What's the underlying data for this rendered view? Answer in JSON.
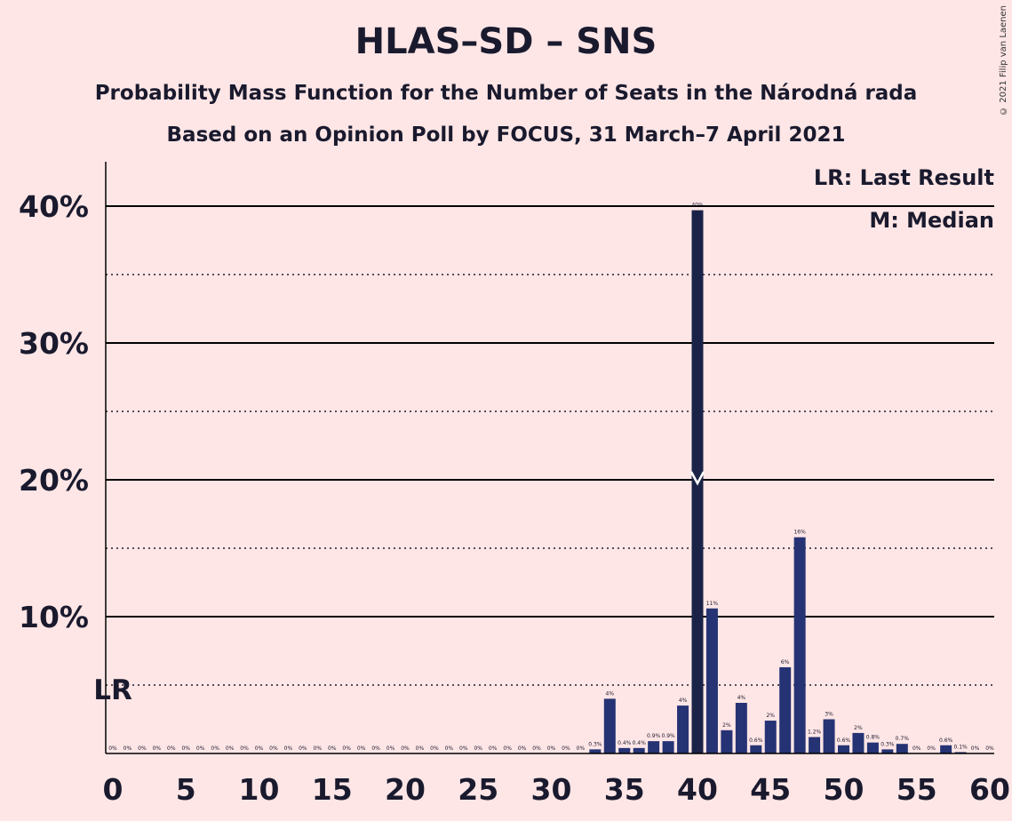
{
  "chart_data": {
    "type": "bar",
    "title": "HLAS–SD – SNS",
    "subtitle": "Probability Mass Function for the Number of Seats in the Národná rada",
    "subtitle2": "Based on an Opinion Poll by FOCUS, 31 March–7 April 2021",
    "copyright": "© 2021 Filip van Laenen",
    "legend": {
      "lr": "LR: Last Result",
      "median": "M: Median",
      "position": "top-right"
    },
    "lr_label": "LR",
    "last_result_seats": 0,
    "median_seats": 40,
    "median_marker_value": 20,
    "xlabel": "",
    "ylabel": "",
    "xlim": [
      0,
      60
    ],
    "ylim": [
      0,
      40
    ],
    "x_ticks": [
      0,
      5,
      10,
      15,
      20,
      25,
      30,
      35,
      40,
      45,
      50,
      55,
      60
    ],
    "y_ticks": [
      {
        "value": 10,
        "label": "10%"
      },
      {
        "value": 20,
        "label": "20%"
      },
      {
        "value": 30,
        "label": "30%"
      },
      {
        "value": 40,
        "label": "40%"
      }
    ],
    "y_dotted": [
      5,
      15,
      25,
      35
    ],
    "bar_colors": {
      "default": "#253374",
      "median": "#1a2347"
    },
    "bars": [
      {
        "seats": 0,
        "value": 0,
        "label": "0%"
      },
      {
        "seats": 1,
        "value": 0,
        "label": "0%"
      },
      {
        "seats": 2,
        "value": 0,
        "label": "0%"
      },
      {
        "seats": 3,
        "value": 0,
        "label": "0%"
      },
      {
        "seats": 4,
        "value": 0,
        "label": "0%"
      },
      {
        "seats": 5,
        "value": 0,
        "label": "0%"
      },
      {
        "seats": 6,
        "value": 0,
        "label": "0%"
      },
      {
        "seats": 7,
        "value": 0,
        "label": "0%"
      },
      {
        "seats": 8,
        "value": 0,
        "label": "0%"
      },
      {
        "seats": 9,
        "value": 0,
        "label": "0%"
      },
      {
        "seats": 10,
        "value": 0,
        "label": "0%"
      },
      {
        "seats": 11,
        "value": 0,
        "label": "0%"
      },
      {
        "seats": 12,
        "value": 0,
        "label": "0%"
      },
      {
        "seats": 13,
        "value": 0,
        "label": "0%"
      },
      {
        "seats": 14,
        "value": 0,
        "label": "0%"
      },
      {
        "seats": 15,
        "value": 0,
        "label": "0%"
      },
      {
        "seats": 16,
        "value": 0,
        "label": "0%"
      },
      {
        "seats": 17,
        "value": 0,
        "label": "0%"
      },
      {
        "seats": 18,
        "value": 0,
        "label": "0%"
      },
      {
        "seats": 19,
        "value": 0,
        "label": "0%"
      },
      {
        "seats": 20,
        "value": 0,
        "label": "0%"
      },
      {
        "seats": 21,
        "value": 0,
        "label": "0%"
      },
      {
        "seats": 22,
        "value": 0,
        "label": "0%"
      },
      {
        "seats": 23,
        "value": 0,
        "label": "0%"
      },
      {
        "seats": 24,
        "value": 0,
        "label": "0%"
      },
      {
        "seats": 25,
        "value": 0,
        "label": "0%"
      },
      {
        "seats": 26,
        "value": 0,
        "label": "0%"
      },
      {
        "seats": 27,
        "value": 0,
        "label": "0%"
      },
      {
        "seats": 28,
        "value": 0,
        "label": "0%"
      },
      {
        "seats": 29,
        "value": 0,
        "label": "0%"
      },
      {
        "seats": 30,
        "value": 0,
        "label": "0%"
      },
      {
        "seats": 31,
        "value": 0,
        "label": "0%"
      },
      {
        "seats": 32,
        "value": 0,
        "label": "0%"
      },
      {
        "seats": 33,
        "value": 0.3,
        "label": "0.3%"
      },
      {
        "seats": 34,
        "value": 4.0,
        "label": "4%"
      },
      {
        "seats": 35,
        "value": 0.4,
        "label": "0.4%"
      },
      {
        "seats": 36,
        "value": 0.4,
        "label": "0.4%"
      },
      {
        "seats": 37,
        "value": 0.9,
        "label": "0.9%"
      },
      {
        "seats": 38,
        "value": 0.9,
        "label": "0.9%"
      },
      {
        "seats": 39,
        "value": 3.5,
        "label": "4%"
      },
      {
        "seats": 40,
        "value": 39.7,
        "label": "40%"
      },
      {
        "seats": 41,
        "value": 10.6,
        "label": "11%"
      },
      {
        "seats": 42,
        "value": 1.7,
        "label": "2%"
      },
      {
        "seats": 43,
        "value": 3.7,
        "label": "4%"
      },
      {
        "seats": 44,
        "value": 0.6,
        "label": "0.6%"
      },
      {
        "seats": 45,
        "value": 2.4,
        "label": "2%"
      },
      {
        "seats": 46,
        "value": 6.3,
        "label": "6%"
      },
      {
        "seats": 47,
        "value": 15.8,
        "label": "16%"
      },
      {
        "seats": 48,
        "value": 1.2,
        "label": "1.2%"
      },
      {
        "seats": 49,
        "value": 2.5,
        "label": "3%"
      },
      {
        "seats": 50,
        "value": 0.6,
        "label": "0.6%"
      },
      {
        "seats": 51,
        "value": 1.5,
        "label": "2%"
      },
      {
        "seats": 52,
        "value": 0.8,
        "label": "0.8%"
      },
      {
        "seats": 53,
        "value": 0.3,
        "label": "0.3%"
      },
      {
        "seats": 54,
        "value": 0.7,
        "label": "0.7%"
      },
      {
        "seats": 55,
        "value": 0,
        "label": "0%"
      },
      {
        "seats": 56,
        "value": 0,
        "label": "0%"
      },
      {
        "seats": 57,
        "value": 0.6,
        "label": "0.6%"
      },
      {
        "seats": 58,
        "value": 0.1,
        "label": "0.1%"
      },
      {
        "seats": 59,
        "value": 0,
        "label": "0%"
      },
      {
        "seats": 60,
        "value": 0,
        "label": "0%"
      }
    ]
  }
}
